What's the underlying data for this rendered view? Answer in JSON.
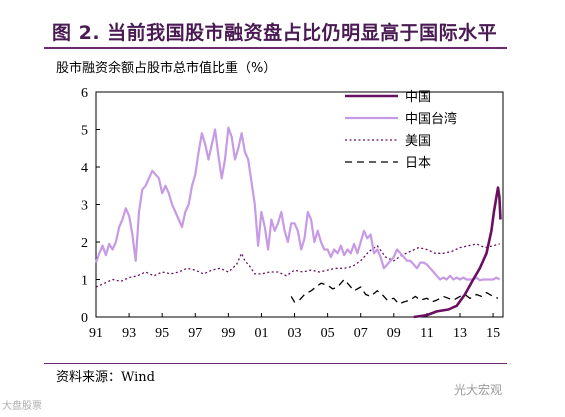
{
  "title": "图 2. 当前我国股市融资盘占比仍明显高于国际水平",
  "source": {
    "label": "资料来源：",
    "value": "Wind"
  },
  "watermarks": {
    "right": "光大宏观",
    "left": "大盘股票"
  },
  "colors": {
    "title": "#4a1a52",
    "rule": "#6a2a6e",
    "china": "#6b1060",
    "taiwan": "#c79ae6",
    "us": "#6b1060",
    "japan": "#000000"
  },
  "chart_data": {
    "type": "line",
    "ylabel": "股市融资余额占股市总市值比重（%）",
    "ylim": [
      0,
      6
    ],
    "yticks": [
      "0",
      "1",
      "2",
      "3",
      "4",
      "5",
      "6"
    ],
    "xlim": [
      1991,
      2015.6
    ],
    "xticks": [
      {
        "label": "91",
        "year": 1991
      },
      {
        "label": "93",
        "year": 1993
      },
      {
        "label": "95",
        "year": 1995
      },
      {
        "label": "97",
        "year": 1997
      },
      {
        "label": "99",
        "year": 1999
      },
      {
        "label": "01",
        "year": 2001
      },
      {
        "label": "03",
        "year": 2003
      },
      {
        "label": "05",
        "year": 2005
      },
      {
        "label": "07",
        "year": 2007
      },
      {
        "label": "09",
        "year": 2009
      },
      {
        "label": "11",
        "year": 2011
      },
      {
        "label": "13",
        "year": 2013
      },
      {
        "label": "15",
        "year": 2015
      }
    ],
    "legend_position": "top-right",
    "series": [
      {
        "name": "中国",
        "color": "#6b1060",
        "style": "solid",
        "width": 2.6,
        "x": [
          2010.2,
          2011.0,
          2011.6,
          2012.3,
          2012.8,
          2013.3,
          2013.8,
          2014.2,
          2014.6,
          2014.9,
          2015.05,
          2015.2,
          2015.3,
          2015.38,
          2015.45
        ],
        "y": [
          0.0,
          0.05,
          0.15,
          0.2,
          0.3,
          0.6,
          1.0,
          1.3,
          1.7,
          2.3,
          2.8,
          3.2,
          3.45,
          3.2,
          2.6
        ]
      },
      {
        "name": "中国台湾",
        "color": "#c79ae6",
        "style": "solid",
        "width": 2.2,
        "x": [
          1991.0,
          1991.2,
          1991.4,
          1991.6,
          1991.8,
          1992.0,
          1992.2,
          1992.4,
          1992.6,
          1992.8,
          1993.0,
          1993.2,
          1993.4,
          1993.6,
          1993.8,
          1994.0,
          1994.2,
          1994.4,
          1994.6,
          1994.8,
          1995.0,
          1995.2,
          1995.4,
          1995.6,
          1995.8,
          1996.0,
          1996.2,
          1996.4,
          1996.6,
          1996.8,
          1997.0,
          1997.2,
          1997.4,
          1997.6,
          1997.8,
          1998.0,
          1998.2,
          1998.4,
          1998.6,
          1998.8,
          1999.0,
          1999.2,
          1999.4,
          1999.6,
          1999.8,
          2000.0,
          2000.2,
          2000.4,
          2000.6,
          2000.8,
          2001.0,
          2001.2,
          2001.4,
          2001.6,
          2001.8,
          2002.0,
          2002.2,
          2002.4,
          2002.6,
          2002.8,
          2003.0,
          2003.2,
          2003.4,
          2003.6,
          2003.8,
          2004.0,
          2004.2,
          2004.4,
          2004.6,
          2004.8,
          2005.0,
          2005.2,
          2005.4,
          2005.6,
          2005.8,
          2006.0,
          2006.2,
          2006.4,
          2006.6,
          2006.8,
          2007.0,
          2007.2,
          2007.4,
          2007.6,
          2007.8,
          2008.0,
          2008.2,
          2008.4,
          2008.6,
          2008.8,
          2009.0,
          2009.2,
          2009.4,
          2009.6,
          2009.8,
          2010.0,
          2010.2,
          2010.4,
          2010.6,
          2010.8,
          2011.0,
          2011.2,
          2011.4,
          2011.6,
          2011.8,
          2012.0,
          2012.2,
          2012.4,
          2012.6,
          2012.8,
          2013.0,
          2013.2,
          2013.4,
          2013.6,
          2013.8,
          2014.0,
          2014.2,
          2014.4,
          2014.6,
          2014.8,
          2015.0,
          2015.2,
          2015.4
        ],
        "y": [
          1.45,
          1.7,
          1.9,
          1.65,
          1.95,
          1.8,
          2.0,
          2.4,
          2.6,
          2.9,
          2.7,
          2.2,
          1.5,
          2.8,
          3.4,
          3.5,
          3.7,
          3.9,
          3.8,
          3.7,
          3.3,
          3.5,
          3.3,
          3.0,
          2.8,
          2.6,
          2.4,
          2.8,
          3.0,
          3.5,
          3.8,
          4.4,
          4.9,
          4.6,
          4.2,
          4.6,
          5.0,
          4.3,
          3.7,
          4.2,
          5.05,
          4.8,
          4.2,
          4.5,
          4.9,
          4.4,
          4.2,
          3.6,
          3.0,
          1.9,
          2.8,
          2.4,
          1.8,
          2.6,
          2.3,
          2.5,
          2.8,
          2.3,
          2.0,
          2.5,
          2.5,
          2.3,
          1.8,
          2.1,
          2.8,
          2.6,
          2.0,
          2.3,
          2.0,
          1.8,
          1.8,
          1.6,
          1.8,
          1.7,
          1.9,
          1.65,
          1.8,
          1.7,
          1.95,
          1.7,
          2.0,
          2.3,
          2.1,
          2.2,
          1.7,
          1.8,
          1.6,
          1.3,
          1.4,
          1.5,
          1.6,
          1.8,
          1.7,
          1.6,
          1.5,
          1.5,
          1.4,
          1.3,
          1.45,
          1.45,
          1.4,
          1.3,
          1.2,
          1.1,
          1.0,
          1.05,
          1.0,
          1.1,
          1.0,
          1.05,
          1.0,
          1.05,
          1.0,
          1.0,
          1.0,
          1.05,
          0.98,
          1.0,
          1.0,
          1.0,
          1.0,
          1.05,
          1.0
        ]
      },
      {
        "name": "美国",
        "color": "#6b1060",
        "style": "dotted",
        "width": 1.3,
        "x": [
          1991.0,
          1991.5,
          1992.0,
          1992.5,
          1993.0,
          1993.5,
          1994.0,
          1994.5,
          1995.0,
          1995.5,
          1996.0,
          1996.5,
          1997.0,
          1997.5,
          1998.0,
          1998.5,
          1999.0,
          1999.5,
          1999.8,
          2000.0,
          2000.3,
          2000.6,
          2001.0,
          2001.5,
          2002.0,
          2002.5,
          2003.0,
          2003.5,
          2004.0,
          2004.5,
          2005.0,
          2005.5,
          2006.0,
          2006.5,
          2007.0,
          2007.5,
          2008.0,
          2008.5,
          2009.0,
          2009.5,
          2010.0,
          2010.5,
          2011.0,
          2011.5,
          2012.0,
          2012.5,
          2013.0,
          2013.5,
          2014.0,
          2014.5,
          2015.0,
          2015.4
        ],
        "y": [
          0.8,
          0.9,
          1.0,
          0.95,
          1.05,
          1.1,
          1.2,
          1.1,
          1.2,
          1.15,
          1.2,
          1.3,
          1.25,
          1.15,
          1.25,
          1.3,
          1.2,
          1.4,
          1.7,
          1.5,
          1.35,
          1.15,
          1.15,
          1.2,
          1.2,
          1.1,
          1.25,
          1.2,
          1.25,
          1.2,
          1.25,
          1.3,
          1.3,
          1.35,
          1.5,
          1.75,
          1.9,
          1.6,
          1.5,
          1.65,
          1.75,
          1.85,
          1.8,
          1.7,
          1.7,
          1.75,
          1.85,
          1.9,
          1.95,
          1.85,
          1.9,
          1.95
        ]
      },
      {
        "name": "日本",
        "color": "#000000",
        "style": "dashed",
        "width": 1.3,
        "x": [
          2002.8,
          2003.0,
          2003.3,
          2003.6,
          2004.0,
          2004.3,
          2004.6,
          2005.0,
          2005.3,
          2005.6,
          2006.0,
          2006.3,
          2006.6,
          2007.0,
          2007.3,
          2007.6,
          2008.0,
          2008.3,
          2008.6,
          2009.0,
          2009.3,
          2009.6,
          2010.0,
          2010.3,
          2010.6,
          2011.0,
          2011.3,
          2011.6,
          2012.0,
          2012.3,
          2012.6,
          2013.0,
          2013.3,
          2013.6,
          2014.0,
          2014.3,
          2014.6,
          2015.0,
          2015.3
        ],
        "y": [
          0.55,
          0.4,
          0.45,
          0.6,
          0.7,
          0.8,
          0.9,
          0.85,
          0.75,
          0.8,
          1.0,
          0.85,
          0.7,
          0.8,
          0.6,
          0.55,
          0.7,
          0.6,
          0.45,
          0.5,
          0.35,
          0.4,
          0.45,
          0.55,
          0.45,
          0.5,
          0.4,
          0.45,
          0.55,
          0.5,
          0.45,
          0.55,
          0.6,
          0.5,
          0.6,
          0.55,
          0.65,
          0.55,
          0.5
        ]
      }
    ]
  }
}
